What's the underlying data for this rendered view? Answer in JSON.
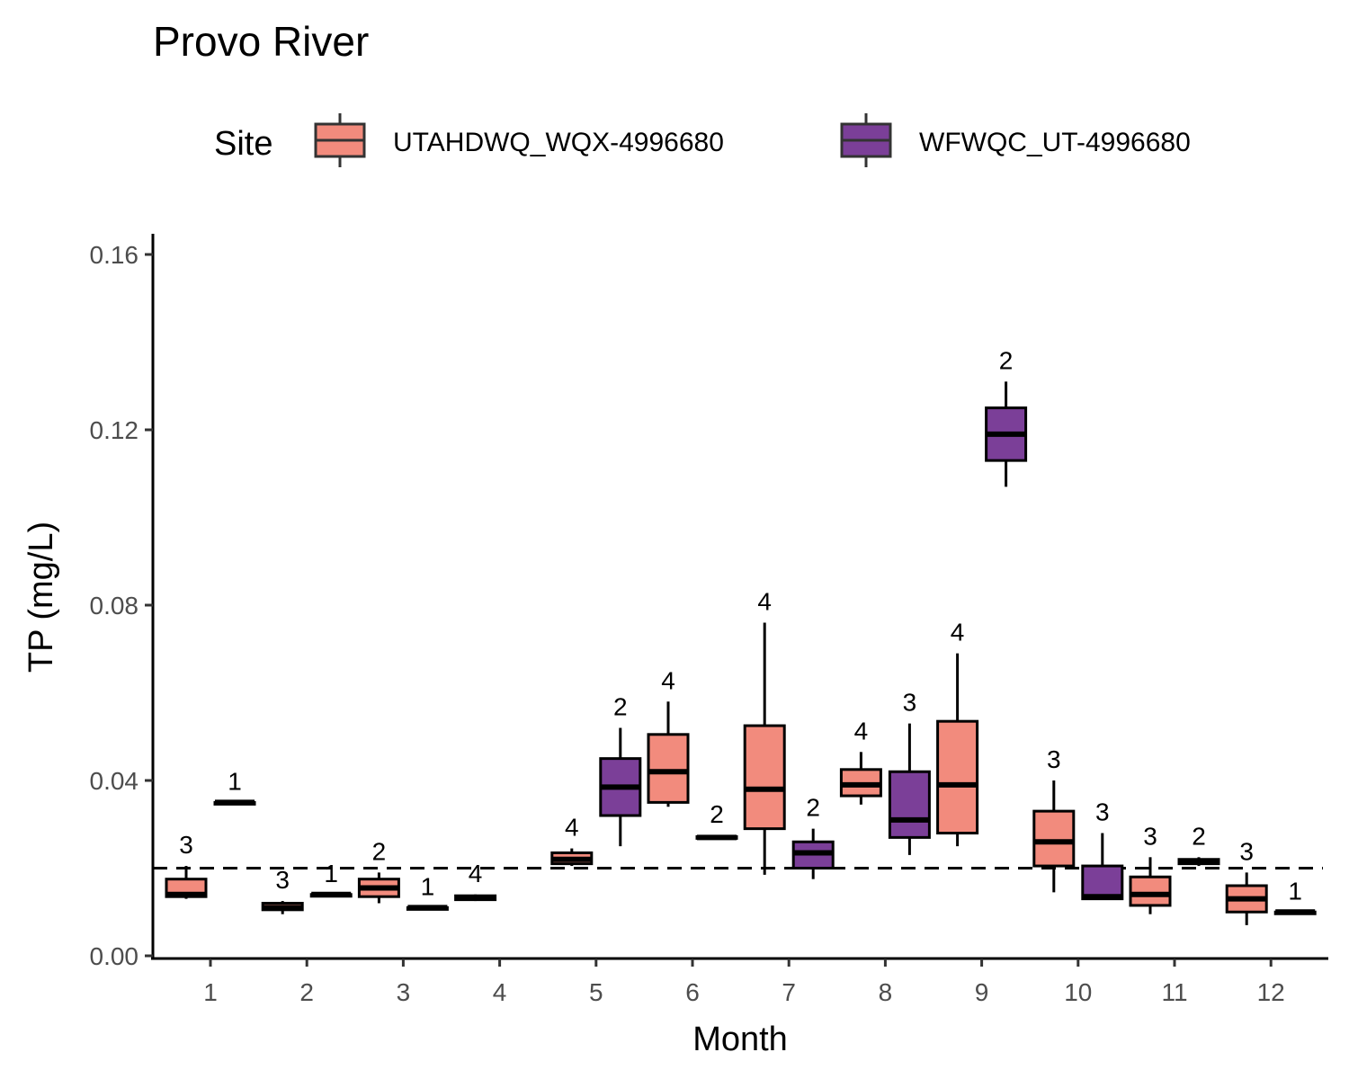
{
  "chart_data": {
    "type": "boxplot",
    "title": "Provo River",
    "xlabel": "Month",
    "ylabel": "TP (mg/L)",
    "ylim": [
      0,
      0.165
    ],
    "yticks": [
      "0.00",
      "0.04",
      "0.08",
      "0.12",
      "0.16"
    ],
    "ytick_values": [
      0,
      0.04,
      0.08,
      0.12,
      0.16
    ],
    "categories": [
      "1",
      "2",
      "3",
      "4",
      "5",
      "6",
      "7",
      "8",
      "9",
      "10",
      "11",
      "12"
    ],
    "reference_line": {
      "value": 0.02,
      "style": "dashed"
    },
    "legend": {
      "title": "Site",
      "position": "top"
    },
    "grid": false,
    "series": [
      {
        "name": "UTAHDWQ_WQX-4996680",
        "color": "#F28B7D",
        "boxes": [
          {
            "month": "1",
            "n": "3",
            "lower": 0.013,
            "q1": 0.0135,
            "median": 0.014,
            "q3": 0.0175,
            "upper": 0.0205
          },
          {
            "month": "2",
            "n": "3",
            "lower": 0.0095,
            "q1": 0.0105,
            "median": 0.011,
            "q3": 0.012,
            "upper": 0.0125
          },
          {
            "month": "3",
            "n": "2",
            "lower": 0.012,
            "q1": 0.0135,
            "median": 0.0155,
            "q3": 0.0175,
            "upper": 0.019
          },
          {
            "month": "4",
            "n": "4",
            "lower": 0.0125,
            "q1": 0.0128,
            "median": 0.0132,
            "q3": 0.0137,
            "upper": 0.014
          },
          {
            "month": "5",
            "n": "4",
            "lower": 0.0205,
            "q1": 0.021,
            "median": 0.022,
            "q3": 0.0235,
            "upper": 0.0245
          },
          {
            "month": "6",
            "n": "4",
            "lower": 0.034,
            "q1": 0.035,
            "median": 0.042,
            "q3": 0.0505,
            "upper": 0.058
          },
          {
            "month": "7",
            "n": "4",
            "lower": 0.0185,
            "q1": 0.029,
            "median": 0.038,
            "q3": 0.0525,
            "upper": 0.076
          },
          {
            "month": "8",
            "n": "4",
            "lower": 0.0345,
            "q1": 0.0365,
            "median": 0.039,
            "q3": 0.0425,
            "upper": 0.0465
          },
          {
            "month": "9",
            "n": "4",
            "lower": 0.025,
            "q1": 0.028,
            "median": 0.039,
            "q3": 0.0535,
            "upper": 0.069
          },
          {
            "month": "10",
            "n": "3",
            "lower": 0.0145,
            "q1": 0.0205,
            "median": 0.026,
            "q3": 0.033,
            "upper": 0.04
          },
          {
            "month": "11",
            "n": "3",
            "lower": 0.0095,
            "q1": 0.0115,
            "median": 0.014,
            "q3": 0.018,
            "upper": 0.0225
          },
          {
            "month": "12",
            "n": "3",
            "lower": 0.007,
            "q1": 0.01,
            "median": 0.013,
            "q3": 0.016,
            "upper": 0.019
          }
        ]
      },
      {
        "name": "WFWQC_UT-4996680",
        "color": "#7B3F98",
        "boxes": [
          {
            "month": "1",
            "n": "1",
            "lower": 0.035,
            "q1": 0.035,
            "median": 0.035,
            "q3": 0.035,
            "upper": 0.035
          },
          {
            "month": "2",
            "n": "1",
            "lower": 0.014,
            "q1": 0.014,
            "median": 0.014,
            "q3": 0.014,
            "upper": 0.014
          },
          {
            "month": "3",
            "n": "1",
            "lower": 0.011,
            "q1": 0.011,
            "median": 0.011,
            "q3": 0.011,
            "upper": 0.011
          },
          {
            "month": "5",
            "n": "2",
            "lower": 0.025,
            "q1": 0.032,
            "median": 0.0385,
            "q3": 0.045,
            "upper": 0.052
          },
          {
            "month": "6",
            "n": "2",
            "lower": 0.0265,
            "q1": 0.0268,
            "median": 0.027,
            "q3": 0.0272,
            "upper": 0.0275
          },
          {
            "month": "7",
            "n": "2",
            "lower": 0.0175,
            "q1": 0.02,
            "median": 0.0235,
            "q3": 0.026,
            "upper": 0.029
          },
          {
            "month": "8",
            "n": "3",
            "lower": 0.023,
            "q1": 0.027,
            "median": 0.031,
            "q3": 0.042,
            "upper": 0.053
          },
          {
            "month": "9",
            "n": "2",
            "lower": 0.107,
            "q1": 0.113,
            "median": 0.119,
            "q3": 0.125,
            "upper": 0.131
          },
          {
            "month": "10",
            "n": "3",
            "lower": 0.013,
            "q1": 0.013,
            "median": 0.0135,
            "q3": 0.0205,
            "upper": 0.028
          },
          {
            "month": "11",
            "n": "2",
            "lower": 0.0205,
            "q1": 0.021,
            "median": 0.0215,
            "q3": 0.022,
            "upper": 0.0225
          },
          {
            "month": "12",
            "n": "1",
            "lower": 0.01,
            "q1": 0.01,
            "median": 0.01,
            "q3": 0.01,
            "upper": 0.01
          }
        ]
      }
    ]
  }
}
